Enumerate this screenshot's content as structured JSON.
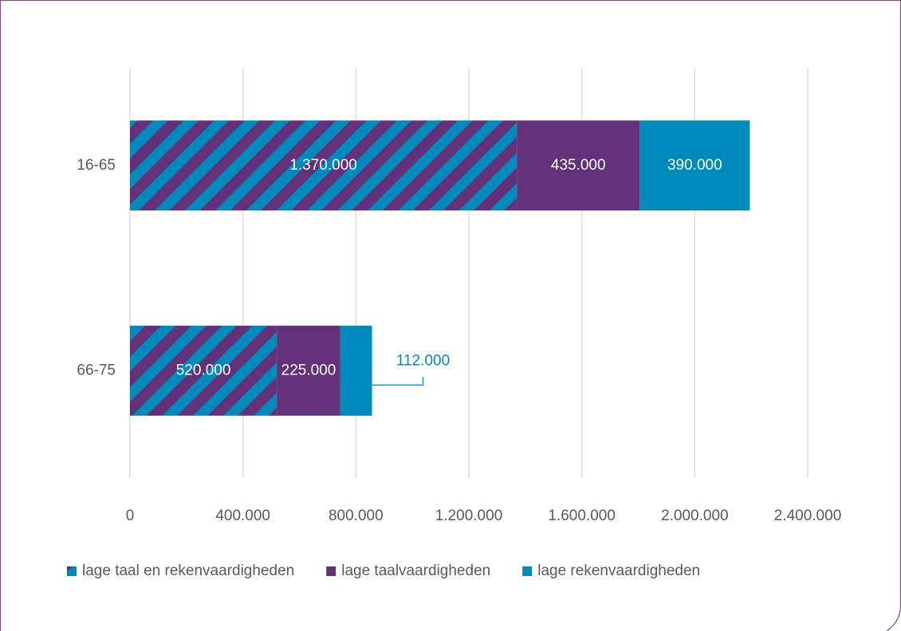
{
  "chart_data": {
    "type": "stacked-barh",
    "categories": [
      "16-65",
      "66-75"
    ],
    "series": [
      {
        "name": "lage taal en rekenvaardigheden",
        "color": "#0089bb",
        "pattern": "diagonal-stripes",
        "colors": [
          "#63317a",
          "#0089bb"
        ],
        "values": [
          1370000,
          520000
        ],
        "value_labels": [
          "1.370.000",
          "520.000"
        ]
      },
      {
        "name": "lage taalvaardigheden",
        "color": "#63317a",
        "values": [
          435000,
          225000
        ],
        "value_labels": [
          "435.000",
          "225.000"
        ]
      },
      {
        "name": "lage rekenvaardigheden",
        "color": "#0089bb",
        "values": [
          390000,
          112000
        ],
        "value_labels": [
          "390.000",
          "112.000"
        ]
      }
    ],
    "xlim": [
      0,
      2400000
    ],
    "xticks": [
      0,
      {
        "value": 400000,
        "label": "400.000"
      },
      {
        "value": 800000,
        "label": "800.000"
      },
      {
        "value": 1200000,
        "label": "1.200.000"
      },
      {
        "value": 1600000,
        "label": "1.600.000"
      },
      {
        "value": 2000000,
        "label": "2.000.000"
      },
      {
        "value": 2400000,
        "label": "2.400.000"
      }
    ],
    "grid": true,
    "legend": "bottom"
  }
}
